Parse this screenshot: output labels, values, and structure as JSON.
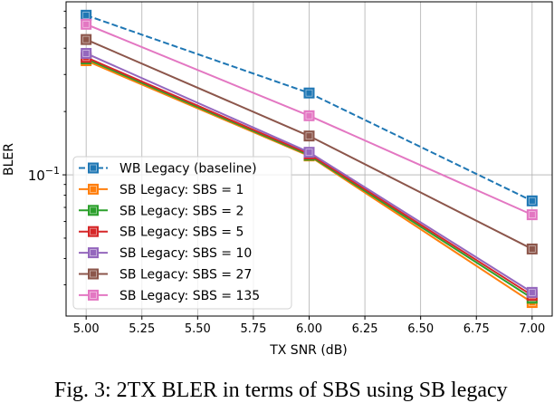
{
  "chart_data": {
    "type": "line",
    "title": "",
    "xlabel": "TX SNR (dB)",
    "ylabel": "BLER",
    "yscale": "log",
    "xlim": [
      4.91,
      7.09
    ],
    "ylim": [
      0.0213,
      0.665
    ],
    "x": [
      5.0,
      6.0,
      7.0
    ],
    "xticks": [
      "5.00",
      "5.25",
      "5.50",
      "5.75",
      "6.00",
      "6.25",
      "6.50",
      "6.75",
      "7.00"
    ],
    "ytick_major": {
      "value": 0.1,
      "label_base": "10",
      "label_exp": "−1"
    },
    "grid": true,
    "legend": "bottom-left",
    "series": [
      {
        "name": "WB Legacy (baseline)",
        "color": "#1f77b4",
        "dashed": true,
        "values": [
          0.574,
          0.245,
          0.0752
        ]
      },
      {
        "name": "SB Legacy: SBS = 1",
        "color": "#ff7f0e",
        "dashed": false,
        "values": [
          0.349,
          0.123,
          0.0247
        ]
      },
      {
        "name": "SB Legacy: SBS = 2",
        "color": "#2ca02c",
        "dashed": false,
        "values": [
          0.356,
          0.124,
          0.0259
        ]
      },
      {
        "name": "SB Legacy: SBS = 5",
        "color": "#d62728",
        "dashed": false,
        "values": [
          0.362,
          0.1257,
          0.0267
        ]
      },
      {
        "name": "SB Legacy: SBS = 10",
        "color": "#9467bd",
        "dashed": false,
        "values": [
          0.378,
          0.128,
          0.0276
        ]
      },
      {
        "name": "SB Legacy: SBS = 27",
        "color": "#8c564b",
        "dashed": false,
        "values": [
          0.44,
          0.153,
          0.0444
        ]
      },
      {
        "name": "SB Legacy: SBS = 135",
        "color": "#e377c2",
        "dashed": false,
        "values": [
          0.52,
          0.191,
          0.0646
        ]
      }
    ]
  },
  "caption": "Fig. 3: 2TX BLER in terms of SBS using SB legacy"
}
